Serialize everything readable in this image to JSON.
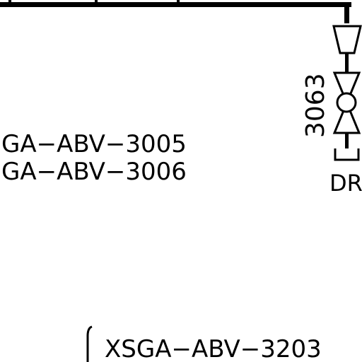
{
  "diagram": {
    "valve_tag": "3063",
    "drain_label": "DR",
    "tag_lines": [
      "GA−ABV−3005",
      "GA−ABV−3006"
    ],
    "bottom_tag": "XSGA−ABV−3203"
  },
  "colors": {
    "line": "#000000",
    "background": "#ffffff"
  }
}
